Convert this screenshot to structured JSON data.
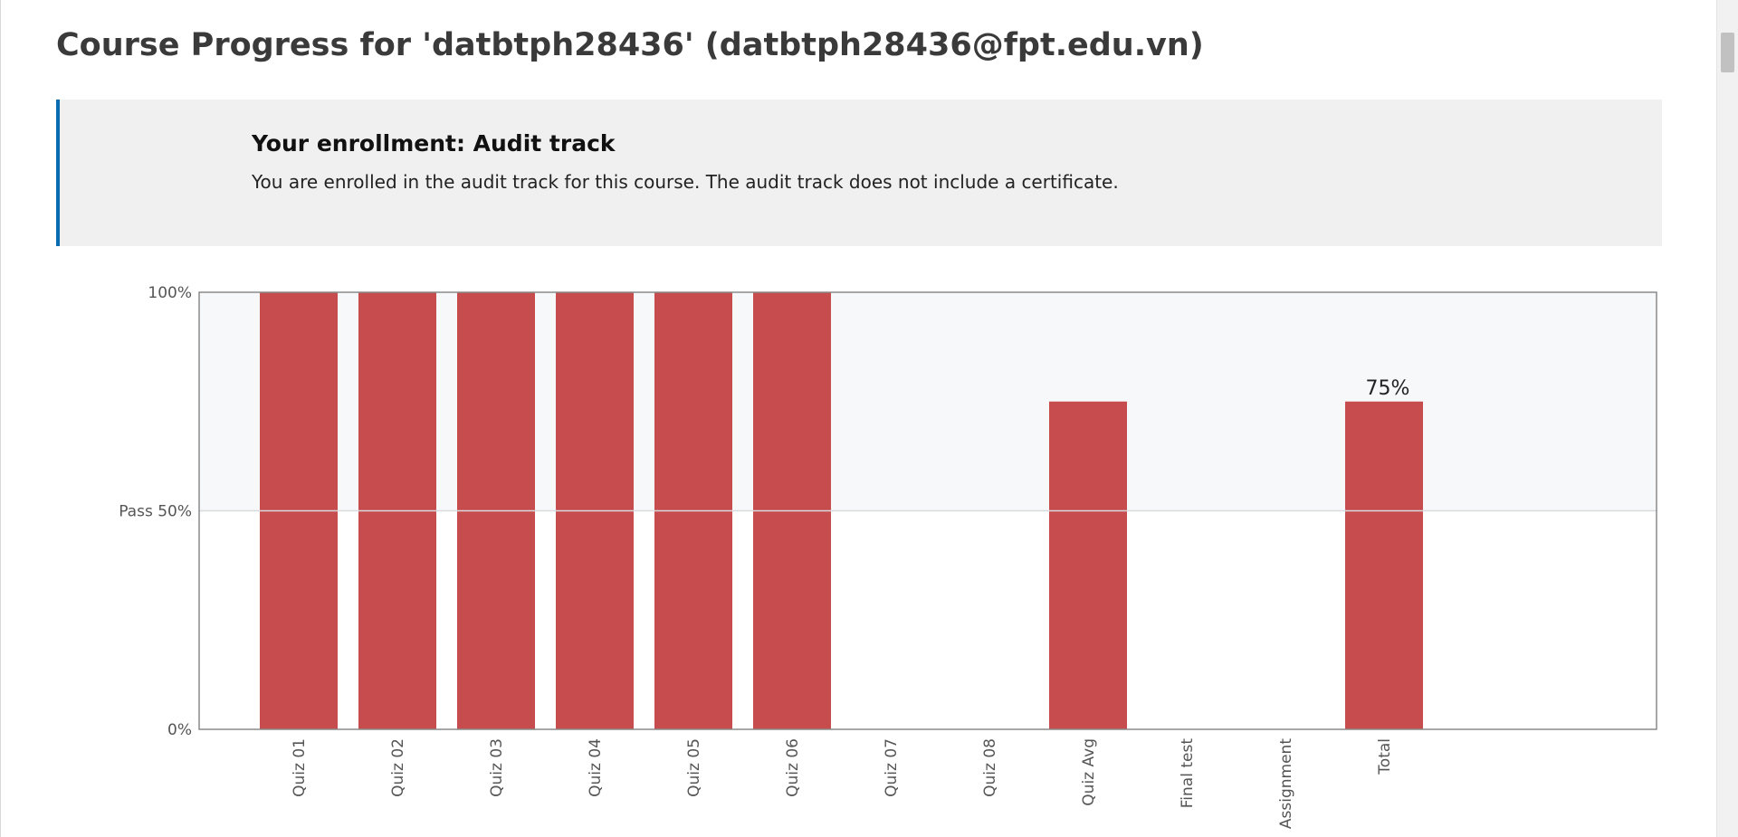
{
  "page": {
    "title": "Course Progress for 'datbtph28436' (datbtph28436@fpt.edu.vn)"
  },
  "enrollment": {
    "heading": "Your enrollment: Audit track",
    "message": "You are enrolled in the audit track for this course. The audit track does not include a certificate."
  },
  "chart_data": {
    "type": "bar",
    "categories": [
      "Quiz 01",
      "Quiz 02",
      "Quiz 03",
      "Quiz 04",
      "Quiz 05",
      "Quiz 06",
      "Quiz 07",
      "Quiz 08",
      "Quiz Avg",
      "Final test",
      "Assignment",
      "Total"
    ],
    "values": [
      100,
      100,
      100,
      100,
      100,
      100,
      0,
      0,
      75,
      0,
      0,
      75
    ],
    "ylim": [
      0,
      100
    ],
    "y_ticks": [
      {
        "value": 100,
        "label": "100%"
      },
      {
        "value": 50,
        "label": "Pass 50%"
      },
      {
        "value": 0,
        "label": "0%"
      }
    ],
    "pass_threshold": 50,
    "data_labels": [
      {
        "category": "Total",
        "label": "75%"
      }
    ],
    "colors": {
      "bar": "#c0393b",
      "pass_band": "#f7f8fa",
      "grid": "#d8dadd",
      "axis": "#8a8a8a"
    }
  }
}
